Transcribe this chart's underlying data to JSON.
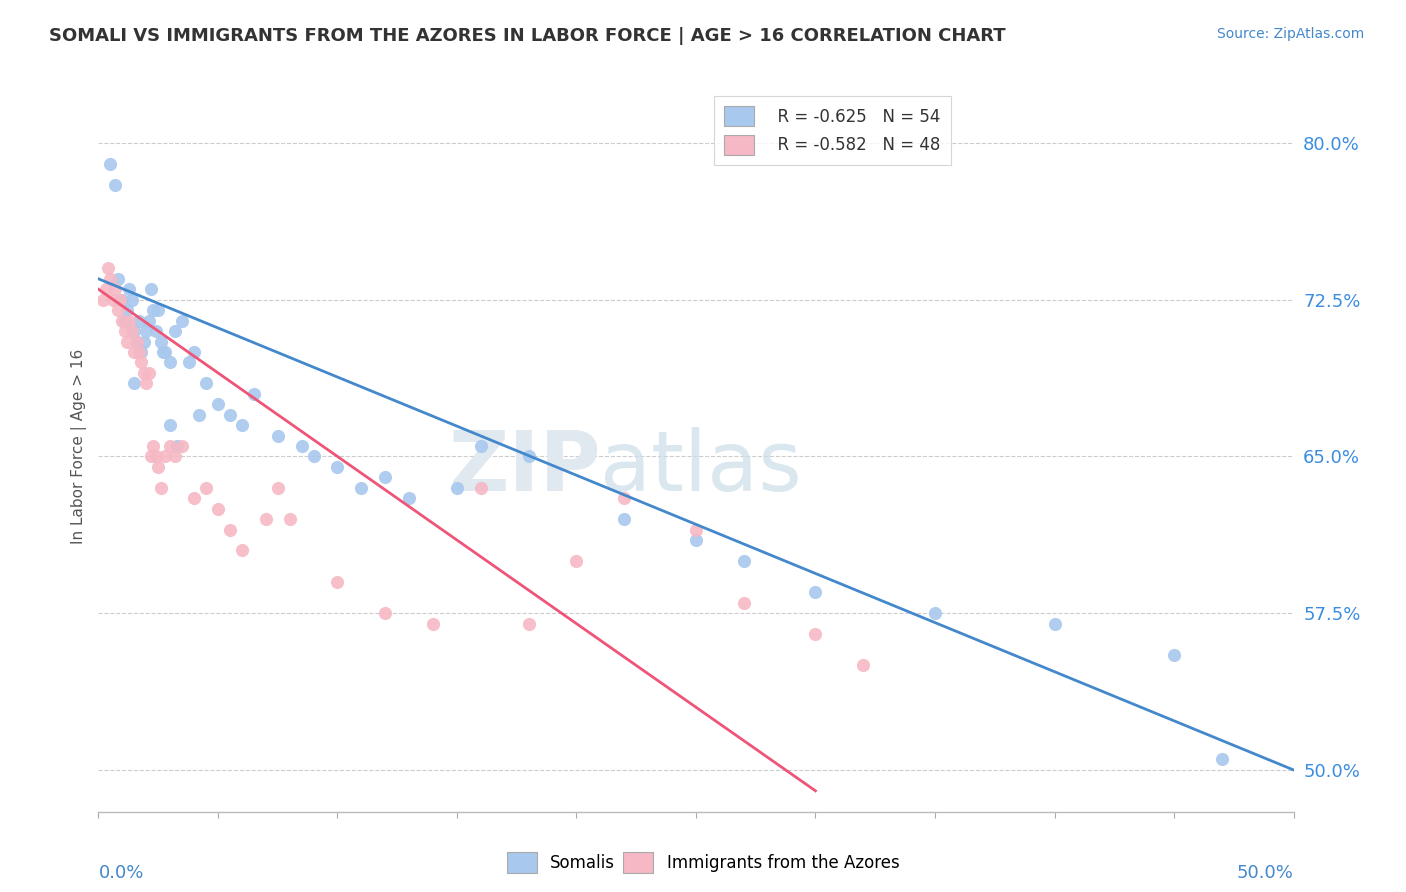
{
  "title": "SOMALI VS IMMIGRANTS FROM THE AZORES IN LABOR FORCE | AGE > 16 CORRELATION CHART",
  "source": "Source: ZipAtlas.com",
  "ylabel_label": "In Labor Force | Age > 16",
  "xlim": [
    0.0,
    50.0
  ],
  "ylim": [
    48.0,
    83.0
  ],
  "ylabel_ticks": [
    50.0,
    57.5,
    65.0,
    72.5,
    80.0
  ],
  "legend_blue_label": "Somalis",
  "legend_pink_label": "Immigrants from the Azores",
  "legend_blue_r": "R = -0.625",
  "legend_blue_n": "N = 54",
  "legend_pink_r": "R = -0.582",
  "legend_pink_n": "N = 48",
  "blue_color": "#A8C8EE",
  "pink_color": "#F5B8C4",
  "blue_line_color": "#4488CC",
  "pink_line_color": "#EE5577",
  "blue_scatter_x": [
    0.5,
    0.7,
    0.8,
    1.0,
    1.1,
    1.2,
    1.3,
    1.4,
    1.5,
    1.6,
    1.7,
    1.8,
    1.9,
    2.0,
    2.1,
    2.2,
    2.3,
    2.4,
    2.5,
    2.6,
    2.8,
    3.0,
    3.2,
    3.5,
    3.8,
    4.0,
    4.5,
    5.0,
    5.5,
    6.0,
    6.5,
    7.5,
    8.5,
    9.0,
    10.0,
    11.0,
    12.0,
    13.0,
    15.0,
    16.0,
    18.0,
    22.0,
    25.0,
    27.0,
    30.0,
    35.0,
    40.0,
    45.0,
    47.0,
    3.0,
    3.3,
    4.2,
    1.5,
    2.7
  ],
  "blue_scatter_y": [
    79.0,
    78.0,
    73.5,
    72.5,
    71.5,
    72.0,
    73.0,
    72.5,
    71.0,
    70.5,
    71.5,
    70.0,
    70.5,
    71.0,
    71.5,
    73.0,
    72.0,
    71.0,
    72.0,
    70.5,
    70.0,
    69.5,
    71.0,
    71.5,
    69.5,
    70.0,
    68.5,
    67.5,
    67.0,
    66.5,
    68.0,
    66.0,
    65.5,
    65.0,
    64.5,
    63.5,
    64.0,
    63.0,
    63.5,
    65.5,
    65.0,
    62.0,
    61.0,
    60.0,
    58.5,
    57.5,
    57.0,
    55.5,
    50.5,
    66.5,
    65.5,
    67.0,
    68.5,
    70.0
  ],
  "pink_scatter_x": [
    0.2,
    0.3,
    0.4,
    0.5,
    0.6,
    0.7,
    0.8,
    0.9,
    1.0,
    1.1,
    1.2,
    1.3,
    1.4,
    1.5,
    1.6,
    1.7,
    1.8,
    1.9,
    2.0,
    2.1,
    2.2,
    2.3,
    2.4,
    2.5,
    2.6,
    2.8,
    3.0,
    3.2,
    3.5,
    4.0,
    4.5,
    5.0,
    5.5,
    6.0,
    7.0,
    7.5,
    8.0,
    10.0,
    12.0,
    14.0,
    16.0,
    18.0,
    20.0,
    22.0,
    25.0,
    27.0,
    30.0,
    32.0
  ],
  "pink_scatter_y": [
    72.5,
    73.0,
    74.0,
    73.5,
    72.5,
    73.0,
    72.0,
    72.5,
    71.5,
    71.0,
    70.5,
    71.5,
    71.0,
    70.0,
    70.5,
    70.0,
    69.5,
    69.0,
    68.5,
    69.0,
    65.0,
    65.5,
    65.0,
    64.5,
    63.5,
    65.0,
    65.5,
    65.0,
    65.5,
    63.0,
    63.5,
    62.5,
    61.5,
    60.5,
    62.0,
    63.5,
    62.0,
    59.0,
    57.5,
    57.0,
    63.5,
    57.0,
    60.0,
    63.0,
    61.5,
    58.0,
    56.5,
    55.0
  ],
  "blue_line_x": [
    0.0,
    50.0
  ],
  "blue_line_y": [
    73.5,
    50.0
  ],
  "pink_line_x": [
    0.0,
    30.0
  ],
  "pink_line_y": [
    73.0,
    49.0
  ]
}
